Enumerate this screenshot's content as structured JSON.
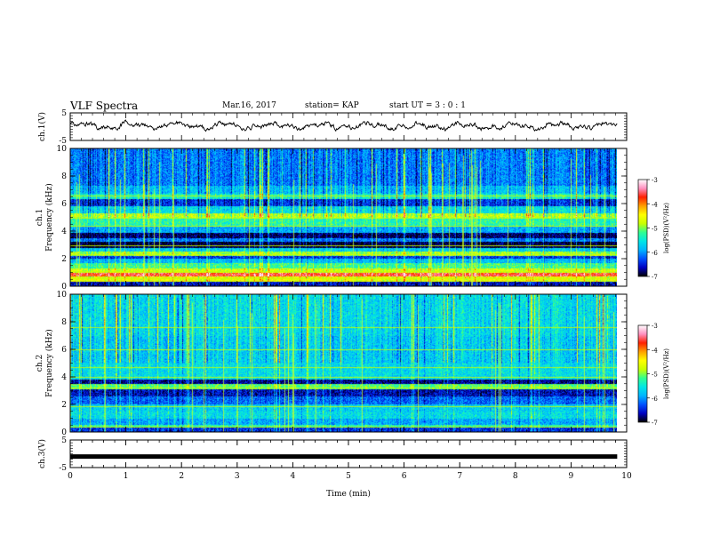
{
  "header": {
    "title": "VLF Spectra",
    "date": "Mar.16, 2017",
    "station": "station= KAP",
    "start": "start  UT  =   3  : 0  : 1"
  },
  "chart_data": [
    {
      "type": "line",
      "name": "ch1-waveform",
      "ylabel": "ch.1(V)",
      "ylim": [
        -5,
        5
      ],
      "yticks": [
        "5",
        "-5"
      ],
      "xlim": [
        0,
        10
      ],
      "x_extent": [
        0,
        9.83
      ],
      "description_values": {
        "center": 0.3,
        "amplitude": 1.4
      }
    },
    {
      "type": "heatmap",
      "name": "ch1-spectrogram",
      "ylabel": "ch.1\nFrequency (kHz)",
      "ylim": [
        0,
        10
      ],
      "yticks": [
        "0",
        "2",
        "4",
        "6",
        "8",
        "10"
      ],
      "xlim": [
        0,
        10
      ],
      "x_extent": [
        0,
        9.83
      ],
      "bands": [
        {
          "f0": 0.0,
          "f1": 0.3,
          "level": -6.6
        },
        {
          "f0": 0.3,
          "f1": 0.7,
          "level": -4.6
        },
        {
          "f0": 0.7,
          "f1": 1.0,
          "level": -3.6
        },
        {
          "f0": 1.0,
          "f1": 1.3,
          "level": -4.7
        },
        {
          "f0": 1.3,
          "f1": 1.7,
          "level": -5.2
        },
        {
          "f0": 1.7,
          "f1": 2.0,
          "level": -5.8
        },
        {
          "f0": 2.0,
          "f1": 2.2,
          "level": -6.4
        },
        {
          "f0": 2.2,
          "f1": 2.5,
          "level": -4.9
        },
        {
          "f0": 2.5,
          "f1": 2.8,
          "level": -5.7
        },
        {
          "f0": 2.8,
          "f1": 3.2,
          "level": -6.9
        },
        {
          "f0": 3.2,
          "f1": 3.5,
          "level": -6.1
        },
        {
          "f0": 3.5,
          "f1": 3.9,
          "level": -6.8
        },
        {
          "f0": 3.9,
          "f1": 4.3,
          "level": -5.9
        },
        {
          "f0": 4.3,
          "f1": 5.0,
          "level": -5.3
        },
        {
          "f0": 5.0,
          "f1": 5.3,
          "level": -4.8
        },
        {
          "f0": 5.3,
          "f1": 5.8,
          "level": -5.6
        },
        {
          "f0": 5.8,
          "f1": 6.3,
          "level": -6.4
        },
        {
          "f0": 6.3,
          "f1": 6.7,
          "level": -5.4
        },
        {
          "f0": 6.7,
          "f1": 7.3,
          "level": -5.8
        },
        {
          "f0": 7.3,
          "f1": 10.0,
          "level": -6.1
        }
      ],
      "lines_khz": [
        0.6,
        1.1,
        2.3,
        3.0,
        4.4,
        5.0,
        6.6
      ]
    },
    {
      "type": "heatmap",
      "name": "ch2-spectrogram",
      "ylabel": "ch.2\nFrequency (kHz)",
      "ylim": [
        0,
        10
      ],
      "yticks": [
        "0",
        "2",
        "4",
        "6",
        "8",
        "10"
      ],
      "xlim": [
        0,
        10
      ],
      "x_extent": [
        0,
        9.83
      ],
      "bands": [
        {
          "f0": 0.0,
          "f1": 0.3,
          "level": -6.4
        },
        {
          "f0": 0.3,
          "f1": 0.5,
          "level": -5.3
        },
        {
          "f0": 0.5,
          "f1": 1.0,
          "level": -5.9
        },
        {
          "f0": 1.0,
          "f1": 1.5,
          "level": -5.6
        },
        {
          "f0": 1.5,
          "f1": 2.0,
          "level": -5.7
        },
        {
          "f0": 2.0,
          "f1": 2.6,
          "level": -6.2
        },
        {
          "f0": 2.6,
          "f1": 3.1,
          "level": -6.6
        },
        {
          "f0": 3.1,
          "f1": 3.5,
          "level": -5.1
        },
        {
          "f0": 3.5,
          "f1": 3.8,
          "level": -6.7
        },
        {
          "f0": 3.8,
          "f1": 5.0,
          "level": -5.6
        },
        {
          "f0": 5.0,
          "f1": 7.0,
          "level": -5.7
        },
        {
          "f0": 7.0,
          "f1": 10.0,
          "level": -5.6
        }
      ],
      "lines_khz": [
        0.4,
        1.9,
        3.2,
        4.0,
        4.7,
        6.0,
        7.6
      ]
    },
    {
      "type": "line",
      "name": "ch3-waveform",
      "ylabel": "ch.3(V)",
      "ylim": [
        -5,
        5
      ],
      "yticks": [
        "5",
        "-5"
      ],
      "xlim": [
        0,
        10
      ],
      "x_extent": [
        0,
        9.83
      ],
      "description_values": {
        "center": -1.0,
        "amplitude": 0.1
      }
    }
  ],
  "xaxis": {
    "label": "Time  (min)",
    "ticks": [
      "0",
      "1",
      "2",
      "3",
      "4",
      "5",
      "6",
      "7",
      "8",
      "9",
      "10"
    ]
  },
  "colorbar": {
    "label": "log(PSD)(V²/Hz)",
    "ticks": [
      "-3",
      "-4",
      "-5",
      "-6",
      "-7"
    ],
    "range": [
      -7,
      -3
    ],
    "colors": [
      "#000000",
      "#0000c0",
      "#0050ff",
      "#00b4ff",
      "#00e6e6",
      "#30ff90",
      "#c8ff00",
      "#ffff00",
      "#ffa000",
      "#ff2000",
      "#ff90c0",
      "#ffffff"
    ]
  }
}
